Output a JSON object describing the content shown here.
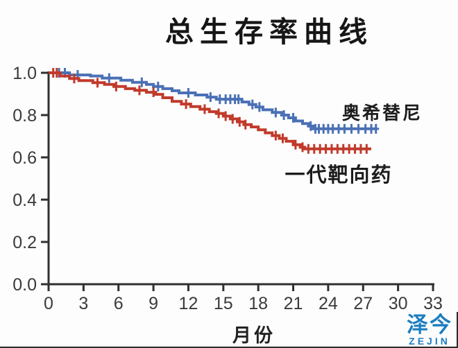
{
  "page": {
    "background": "#fdfdfd"
  },
  "chart_data": {
    "type": "line",
    "chart_style": "kaplan-meier-step-curve",
    "title": "总生存率曲线",
    "xlabel": "月份",
    "ylabel": "",
    "xlim": [
      0,
      33
    ],
    "ylim": [
      0.0,
      1.0
    ],
    "x_ticks": [
      0,
      3,
      6,
      9,
      12,
      15,
      18,
      21,
      24,
      27,
      30,
      33
    ],
    "y_ticks": [
      "0.0",
      "0.2",
      "0.4",
      "0.6",
      "0.8",
      "1.0"
    ],
    "grid": false,
    "legend_position": "labels-near-curve-ends",
    "axis_color": "#2f2f2f",
    "series": [
      {
        "name": "奥希替尼",
        "color": "#4a70b5",
        "final_survival": 0.735,
        "final_month": 28.2,
        "points": [
          [
            0,
            1.0
          ],
          [
            1.8,
            0.99
          ],
          [
            3.6,
            0.985
          ],
          [
            4.6,
            0.975
          ],
          [
            6.2,
            0.965
          ],
          [
            7.2,
            0.955
          ],
          [
            8.4,
            0.945
          ],
          [
            9.0,
            0.935
          ],
          [
            9.8,
            0.925
          ],
          [
            10.6,
            0.915
          ],
          [
            11.2,
            0.905
          ],
          [
            12.6,
            0.895
          ],
          [
            13.6,
            0.885
          ],
          [
            14.4,
            0.875
          ],
          [
            16.6,
            0.862
          ],
          [
            17.2,
            0.85
          ],
          [
            17.8,
            0.838
          ],
          [
            18.4,
            0.825
          ],
          [
            19.2,
            0.812
          ],
          [
            20.0,
            0.8
          ],
          [
            20.6,
            0.787
          ],
          [
            21.2,
            0.772
          ],
          [
            21.8,
            0.76
          ],
          [
            22.3,
            0.748
          ],
          [
            22.7,
            0.735
          ],
          [
            28.2,
            0.735
          ]
        ],
        "censor_marks": [
          [
            0.9,
            1.0
          ],
          [
            1.4,
            1.0
          ],
          [
            2.5,
            0.99
          ],
          [
            5.2,
            0.975
          ],
          [
            8.0,
            0.955
          ],
          [
            9.4,
            0.935
          ],
          [
            12.0,
            0.905
          ],
          [
            13.9,
            0.885
          ],
          [
            14.7,
            0.875
          ],
          [
            15.2,
            0.875
          ],
          [
            15.6,
            0.875
          ],
          [
            16.0,
            0.875
          ],
          [
            16.3,
            0.875
          ],
          [
            17.5,
            0.85
          ],
          [
            18.1,
            0.838
          ],
          [
            19.5,
            0.812
          ],
          [
            20.2,
            0.8
          ],
          [
            21.0,
            0.787
          ],
          [
            22.5,
            0.748
          ],
          [
            22.9,
            0.735
          ],
          [
            23.2,
            0.735
          ],
          [
            23.6,
            0.735
          ],
          [
            24.0,
            0.735
          ],
          [
            24.4,
            0.735
          ],
          [
            24.9,
            0.735
          ],
          [
            25.4,
            0.735
          ],
          [
            26.0,
            0.735
          ],
          [
            26.6,
            0.735
          ],
          [
            27.2,
            0.735
          ],
          [
            27.7,
            0.735
          ],
          [
            28.1,
            0.735
          ]
        ]
      },
      {
        "name": "一代靶向药",
        "color": "#c13a2b",
        "final_survival": 0.64,
        "final_month": 27.7,
        "points": [
          [
            0,
            1.0
          ],
          [
            1.0,
            0.985
          ],
          [
            1.8,
            0.973
          ],
          [
            2.6,
            0.963
          ],
          [
            3.8,
            0.953
          ],
          [
            4.8,
            0.945
          ],
          [
            5.6,
            0.935
          ],
          [
            6.6,
            0.925
          ],
          [
            7.4,
            0.917
          ],
          [
            8.4,
            0.908
          ],
          [
            9.2,
            0.898
          ],
          [
            9.8,
            0.882
          ],
          [
            10.6,
            0.865
          ],
          [
            11.4,
            0.852
          ],
          [
            12.2,
            0.84
          ],
          [
            13.0,
            0.828
          ],
          [
            13.8,
            0.816
          ],
          [
            14.4,
            0.808
          ],
          [
            15.0,
            0.795
          ],
          [
            15.6,
            0.782
          ],
          [
            16.2,
            0.768
          ],
          [
            16.8,
            0.755
          ],
          [
            17.4,
            0.744
          ],
          [
            18.0,
            0.73
          ],
          [
            18.6,
            0.716
          ],
          [
            19.2,
            0.703
          ],
          [
            19.8,
            0.69
          ],
          [
            20.4,
            0.676
          ],
          [
            21.0,
            0.66
          ],
          [
            21.6,
            0.648
          ],
          [
            22.0,
            0.64
          ],
          [
            27.7,
            0.64
          ]
        ],
        "censor_marks": [
          [
            0.4,
            1.0
          ],
          [
            0.7,
            1.0
          ],
          [
            2.2,
            0.973
          ],
          [
            4.2,
            0.953
          ],
          [
            5.8,
            0.935
          ],
          [
            7.8,
            0.917
          ],
          [
            9.0,
            0.908
          ],
          [
            11.8,
            0.852
          ],
          [
            13.4,
            0.828
          ],
          [
            14.6,
            0.808
          ],
          [
            15.2,
            0.795
          ],
          [
            15.8,
            0.782
          ],
          [
            16.4,
            0.768
          ],
          [
            16.9,
            0.755
          ],
          [
            19.5,
            0.703
          ],
          [
            20.1,
            0.69
          ],
          [
            21.2,
            0.66
          ],
          [
            21.8,
            0.648
          ],
          [
            22.3,
            0.64
          ],
          [
            22.8,
            0.64
          ],
          [
            23.3,
            0.64
          ],
          [
            23.8,
            0.64
          ],
          [
            24.3,
            0.64
          ],
          [
            24.8,
            0.64
          ],
          [
            25.3,
            0.64
          ],
          [
            25.8,
            0.64
          ],
          [
            26.3,
            0.64
          ],
          [
            26.8,
            0.64
          ],
          [
            27.3,
            0.64
          ]
        ]
      }
    ]
  },
  "watermark": {
    "cn": "泽今",
    "en": "ZEJIN",
    "color": "#1d7dc2"
  }
}
